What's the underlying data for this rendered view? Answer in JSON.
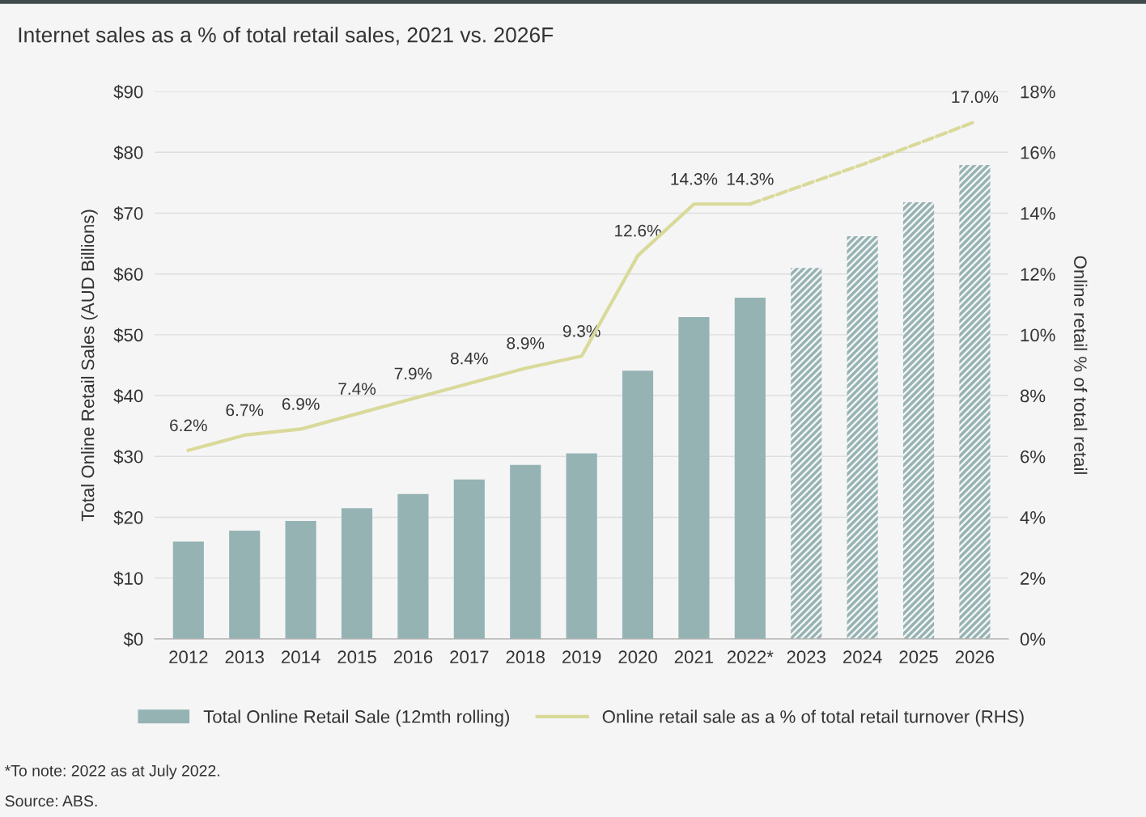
{
  "chart_data": {
    "type": "bar",
    "title": "Internet sales as a % of total retail sales, 2021 vs. 2026F",
    "categories": [
      "2012",
      "2013",
      "2014",
      "2015",
      "2016",
      "2017",
      "2018",
      "2019",
      "2020",
      "2021",
      "2022*",
      "2023",
      "2024",
      "2025",
      "2026"
    ],
    "series": [
      {
        "name": "Total Online Retail Sale (12mth rolling)",
        "color": "#96b3b4",
        "values": [
          16.0,
          17.8,
          19.4,
          21.5,
          23.8,
          26.2,
          28.6,
          30.5,
          44.1,
          52.9,
          56.1,
          null,
          null,
          null,
          null
        ]
      },
      {
        "color": "#96b3b4",
        "values": [
          null,
          null,
          null,
          null,
          null,
          null,
          null,
          null,
          null,
          null,
          null,
          61.0,
          66.2,
          71.8,
          77.9
        ]
      },
      {
        "name": "Online retail sale as a % of total retail turnover (RHS)",
        "color": "#d9d99a",
        "type": "line",
        "axis": "y2",
        "line_style": "solid",
        "values": [
          6.2,
          6.7,
          6.9,
          7.4,
          7.9,
          8.4,
          8.9,
          9.3,
          12.6,
          14.3,
          14.3,
          null,
          null,
          null,
          null
        ],
        "value_labels": [
          "6.2%",
          "6.7%",
          "6.9%",
          "7.4%",
          "7.9%",
          "8.4%",
          "8.9%",
          "9.3%",
          "12.6%",
          "14.3%",
          "14.3%",
          null,
          null,
          null,
          null
        ]
      },
      {
        "color": "#d9d99a",
        "type": "line",
        "axis": "y2",
        "line_style": "dashed",
        "values": [
          null,
          null,
          null,
          null,
          null,
          null,
          null,
          null,
          null,
          null,
          14.3,
          14.95,
          15.6,
          16.3,
          17.0
        ],
        "value_labels": [
          null,
          null,
          null,
          null,
          null,
          null,
          null,
          null,
          null,
          null,
          null,
          null,
          null,
          null,
          "17.0%"
        ]
      }
    ],
    "ylabel": "Total Online Retail Sales (AUD Billions)",
    "y2label": "Online retail % of total retail",
    "ylim": [
      0,
      90
    ],
    "yticks": [
      {
        "value": 0,
        "label": "$0"
      },
      {
        "value": 10,
        "label": "$10"
      },
      {
        "value": 20,
        "label": "$20"
      },
      {
        "value": 30,
        "label": "$30"
      },
      {
        "value": 40,
        "label": "$40"
      },
      {
        "value": 50,
        "label": "$50"
      },
      {
        "value": 60,
        "label": "$60"
      },
      {
        "value": 70,
        "label": "$70"
      },
      {
        "value": 80,
        "label": "$80"
      },
      {
        "value": 90,
        "label": "$90"
      }
    ],
    "y2lim": [
      0,
      18
    ],
    "y2ticks": [
      {
        "value": 0,
        "label": "0%"
      },
      {
        "value": 2,
        "label": "2%"
      },
      {
        "value": 4,
        "label": "4%"
      },
      {
        "value": 6,
        "label": "6%"
      },
      {
        "value": 8,
        "label": "8%"
      },
      {
        "value": 10,
        "label": "10%"
      },
      {
        "value": 12,
        "label": "12%"
      },
      {
        "value": 14,
        "label": "14%"
      },
      {
        "value": 16,
        "label": "16%"
      },
      {
        "value": 18,
        "label": "18%"
      }
    ],
    "grid": "y",
    "legend": "bottom",
    "annotations": [
      "*To note: 2022 as at July 2022.",
      "Source: ABS."
    ]
  }
}
